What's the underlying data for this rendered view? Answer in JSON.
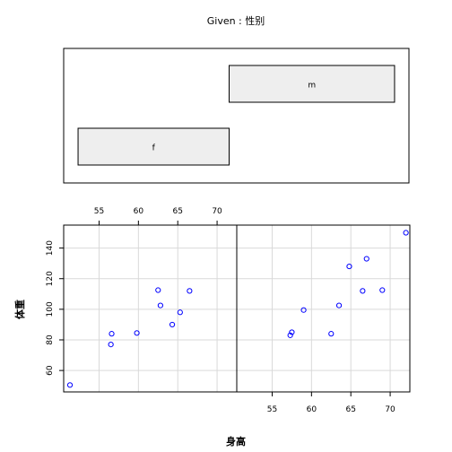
{
  "chart_data": {
    "type": "scatter",
    "title": "Given : 性别",
    "xlabel": "身高",
    "ylabel": "体重",
    "given": {
      "variable": "性别",
      "levels": [
        {
          "name": "f",
          "range": [
            50.5,
            71.5
          ]
        },
        {
          "name": "m",
          "range": [
            71.5,
            94.5
          ]
        }
      ]
    },
    "xlim": [
      50.5,
      72.5
    ],
    "ylim": [
      46,
      155
    ],
    "xticks": [
      55,
      60,
      65,
      70
    ],
    "yticks": [
      60,
      80,
      100,
      120,
      140
    ],
    "xtick_labels": [
      "55",
      "60",
      "65",
      "70"
    ],
    "ytick_labels": [
      "60",
      "80",
      "100",
      "120",
      "140"
    ],
    "grid": true,
    "point_color": "#0000ff",
    "panels": [
      {
        "name": "f",
        "points": [
          {
            "x": 51.3,
            "y": 50.5
          },
          {
            "x": 56.5,
            "y": 77
          },
          {
            "x": 56.6,
            "y": 84
          },
          {
            "x": 59.8,
            "y": 84.5
          },
          {
            "x": 62.5,
            "y": 112.5
          },
          {
            "x": 62.8,
            "y": 102.5
          },
          {
            "x": 64.3,
            "y": 90
          },
          {
            "x": 65.3,
            "y": 98
          },
          {
            "x": 66.5,
            "y": 112
          }
        ]
      },
      {
        "name": "m",
        "points": [
          {
            "x": 57.3,
            "y": 83
          },
          {
            "x": 57.5,
            "y": 85
          },
          {
            "x": 59.0,
            "y": 99.5
          },
          {
            "x": 62.5,
            "y": 84
          },
          {
            "x": 63.5,
            "y": 102.5
          },
          {
            "x": 64.8,
            "y": 128
          },
          {
            "x": 66.5,
            "y": 112
          },
          {
            "x": 67.0,
            "y": 133
          },
          {
            "x": 69.0,
            "y": 112.5
          },
          {
            "x": 72.0,
            "y": 150
          }
        ]
      }
    ]
  }
}
